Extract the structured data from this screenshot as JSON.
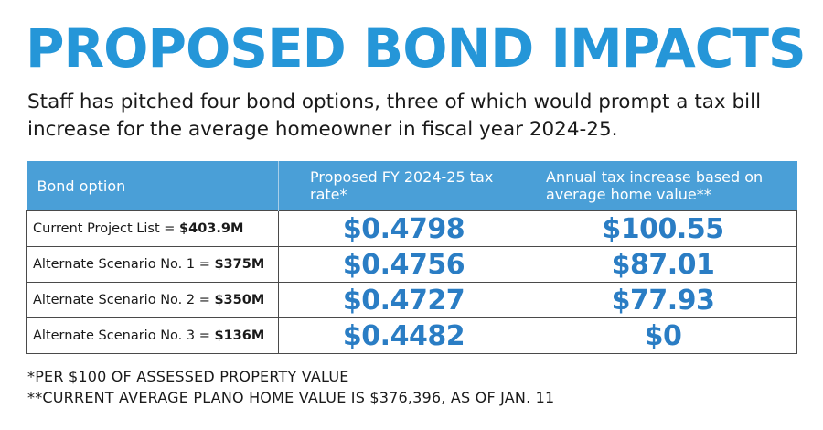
{
  "header": {
    "title": "PROPOSED BOND IMPACTS",
    "subtitle": "Staff has pitched four bond options, three of which would prompt a tax bill increase for the average homeowner in fiscal year 2024-25."
  },
  "table": {
    "headers": [
      "Bond option",
      "Proposed FY 2024-25 tax rate*",
      "Annual tax increase based on average home value**"
    ],
    "rows": [
      {
        "label": "Current Project List = ",
        "amount": "$403.9M",
        "rate": "$0.4798",
        "increase": "$100.55"
      },
      {
        "label": "Alternate Scenario No. 1 = ",
        "amount": "$375M",
        "rate": "$0.4756",
        "increase": "$87.01"
      },
      {
        "label": "Alternate Scenario No. 2 = ",
        "amount": "$350M",
        "rate": "$0.4727",
        "increase": "$77.93"
      },
      {
        "label": "Alternate Scenario No. 3 = ",
        "amount": "$136M",
        "rate": "$0.4482",
        "increase": "$0"
      }
    ]
  },
  "footnotes": [
    "*PER $100 OF ASSESSED PROPERTY VALUE",
    "**CURRENT AVERAGE PLANO HOME VALUE IS $376,396, AS OF JAN. 11"
  ],
  "colors": {
    "title": "#2596d8",
    "header_bg": "#4a9fd7",
    "value_text": "#2a7dc4"
  }
}
